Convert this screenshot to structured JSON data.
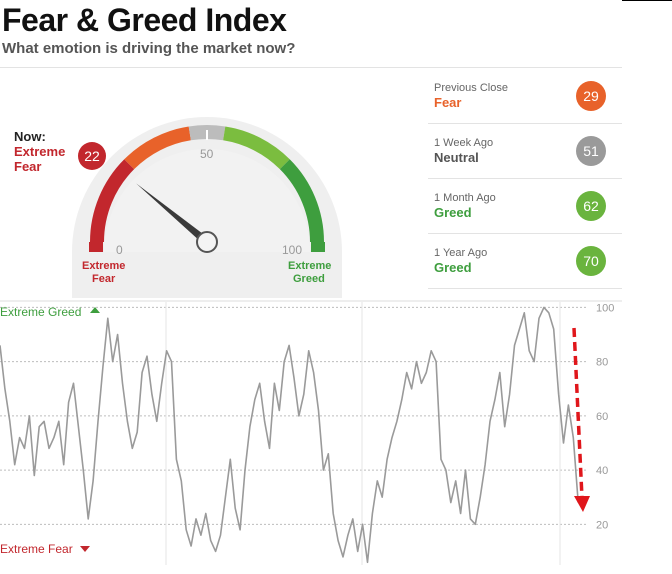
{
  "header": {
    "title": "Fear & Greed Index",
    "subtitle": "What emotion is driving the market now?"
  },
  "gauge": {
    "now_label": "Now:",
    "now_value": 22,
    "now_rating_line1": "Extreme",
    "now_rating_line2": "Fear",
    "min_label": "0",
    "mid_label": "50",
    "max_label": "100",
    "left_caption_line1": "Extreme",
    "left_caption_line2": "Fear",
    "right_caption_line1": "Extreme",
    "right_caption_line2": "Greed",
    "colors": {
      "extreme_fear": "#c2272d",
      "fear": "#e8622a",
      "neutral": "#bcbcbc",
      "greed": "#7bbd3f",
      "extreme_greed": "#3e9e3e"
    }
  },
  "history": [
    {
      "label": "Previous Close",
      "rating": "Fear",
      "value": 29,
      "color": "#e8622a"
    },
    {
      "label": "1 Week Ago",
      "rating": "Neutral",
      "value": 51,
      "color": "#9a9a9a"
    },
    {
      "label": "1 Month Ago",
      "rating": "Greed",
      "value": 62,
      "color": "#6ab43e"
    },
    {
      "label": "1 Year Ago",
      "rating": "Greed",
      "value": 70,
      "color": "#6ab43e"
    }
  ],
  "chart_data": {
    "type": "line",
    "top_label": "Extreme Greed",
    "bottom_label": "Extreme Fear",
    "yticks": [
      "100",
      "80",
      "60",
      "40",
      "20"
    ],
    "ylim": [
      5,
      102
    ],
    "grid": true,
    "xlim": [
      0,
      120
    ],
    "x": [
      0,
      1,
      2,
      3,
      4,
      5,
      6,
      7,
      8,
      9,
      10,
      11,
      12,
      13,
      14,
      15,
      16,
      17,
      18,
      19,
      20,
      21,
      22,
      23,
      24,
      25,
      26,
      27,
      28,
      29,
      30,
      31,
      32,
      33,
      34,
      35,
      36,
      37,
      38,
      39,
      40,
      41,
      42,
      43,
      44,
      45,
      46,
      47,
      48,
      49,
      50,
      51,
      52,
      53,
      54,
      55,
      56,
      57,
      58,
      59,
      60,
      61,
      62,
      63,
      64,
      65,
      66,
      67,
      68,
      69,
      70,
      71,
      72,
      73,
      74,
      75,
      76,
      77,
      78,
      79,
      80,
      81,
      82,
      83,
      84,
      85,
      86,
      87,
      88,
      89,
      90,
      91,
      92,
      93,
      94,
      95,
      96,
      97,
      98,
      99,
      100,
      101,
      102,
      103,
      104,
      105,
      106,
      107,
      108,
      109,
      110,
      111,
      112,
      113,
      114,
      115,
      116,
      117,
      118
    ],
    "series": [
      {
        "values": [
          86,
          70,
          58,
          42,
          52,
          48,
          60,
          38,
          56,
          58,
          48,
          52,
          58,
          42,
          65,
          72,
          56,
          40,
          22,
          36,
          58,
          78,
          96,
          80,
          90,
          72,
          58,
          48,
          54,
          76,
          82,
          68,
          58,
          72,
          84,
          80,
          44,
          36,
          18,
          12,
          22,
          16,
          24,
          14,
          10,
          16,
          30,
          44,
          26,
          18,
          40,
          56,
          66,
          72,
          58,
          48,
          72,
          62,
          80,
          86,
          74,
          60,
          68,
          84,
          76,
          62,
          40,
          46,
          24,
          14,
          8,
          16,
          22,
          10,
          20,
          6,
          24,
          36,
          30,
          44,
          52,
          58,
          66,
          76,
          70,
          80,
          72,
          76,
          84,
          80,
          44,
          40,
          28,
          36,
          24,
          40,
          22,
          20,
          30,
          42,
          58,
          66,
          76,
          56,
          68,
          86,
          92,
          98,
          84,
          80,
          96,
          100,
          98,
          92,
          68,
          50,
          64,
          52,
          28
        ]
      }
    ],
    "gauge_needle_note": "Extreme Fear"
  }
}
